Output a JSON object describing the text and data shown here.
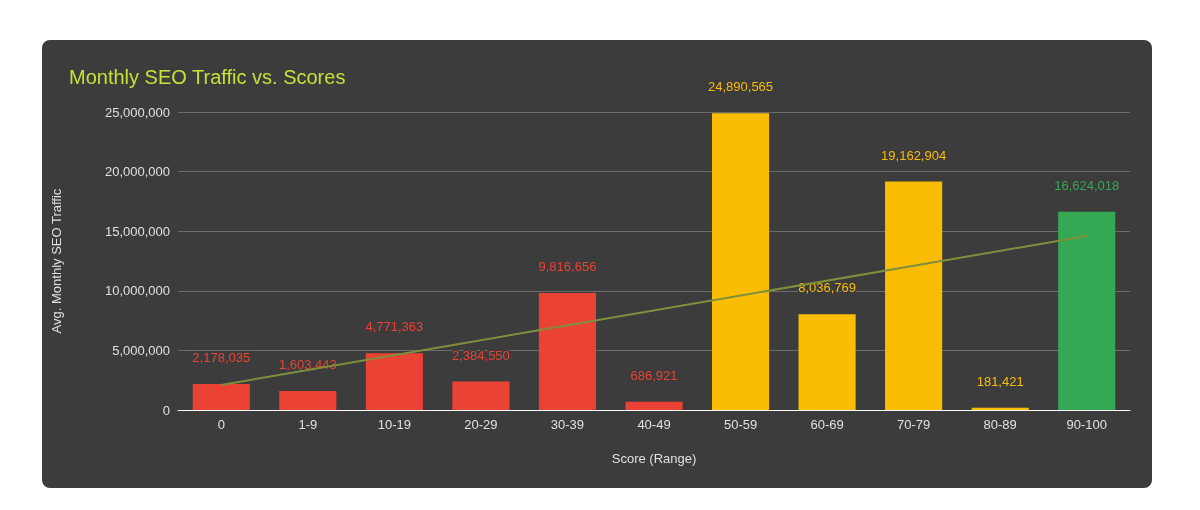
{
  "chart_data": {
    "type": "bar",
    "title": "Monthly SEO Traffic vs. Scores",
    "xlabel": "Score (Range)",
    "ylabel": "Avg. Monthly SEO Traffic",
    "categories": [
      "0",
      "1-9",
      "10-19",
      "20-29",
      "30-39",
      "40-49",
      "50-59",
      "60-69",
      "70-79",
      "80-89",
      "90-100"
    ],
    "series": [
      {
        "values": [
          2178035,
          1603443,
          4771363,
          2384550,
          9816656,
          686921,
          24890565,
          8036769,
          19162904,
          181421,
          16624018
        ],
        "value_labels": [
          "2,178,035",
          "1,603,443",
          "4,771,363",
          "2,384,550",
          "9,816,656",
          "686,921",
          "24,890,565",
          "8,036,769",
          "19,162,904",
          "181,421",
          "16,624,018"
        ],
        "colors": [
          "#ea4335",
          "#ea4335",
          "#ea4335",
          "#ea4335",
          "#ea4335",
          "#ea4335",
          "#fbbc04",
          "#fbbc04",
          "#fbbc04",
          "#fbbc04",
          "#34a853"
        ]
      },
      {
        "type": "line",
        "x": [
          "0",
          "90-100"
        ],
        "values": [
          2100000,
          14600000
        ],
        "color": "#7f8f3c"
      }
    ],
    "ylim": [
      0,
      25000000
    ],
    "yticks": [
      {
        "value": 0,
        "label": "0"
      },
      {
        "value": 5000000,
        "label": "5,000,000"
      },
      {
        "value": 10000000,
        "label": "10,000,000"
      },
      {
        "value": 15000000,
        "label": "15,000,000"
      },
      {
        "value": 20000000,
        "label": "20,000,000"
      },
      {
        "value": 25000000,
        "label": "25,000,000"
      }
    ],
    "grid": "y"
  }
}
